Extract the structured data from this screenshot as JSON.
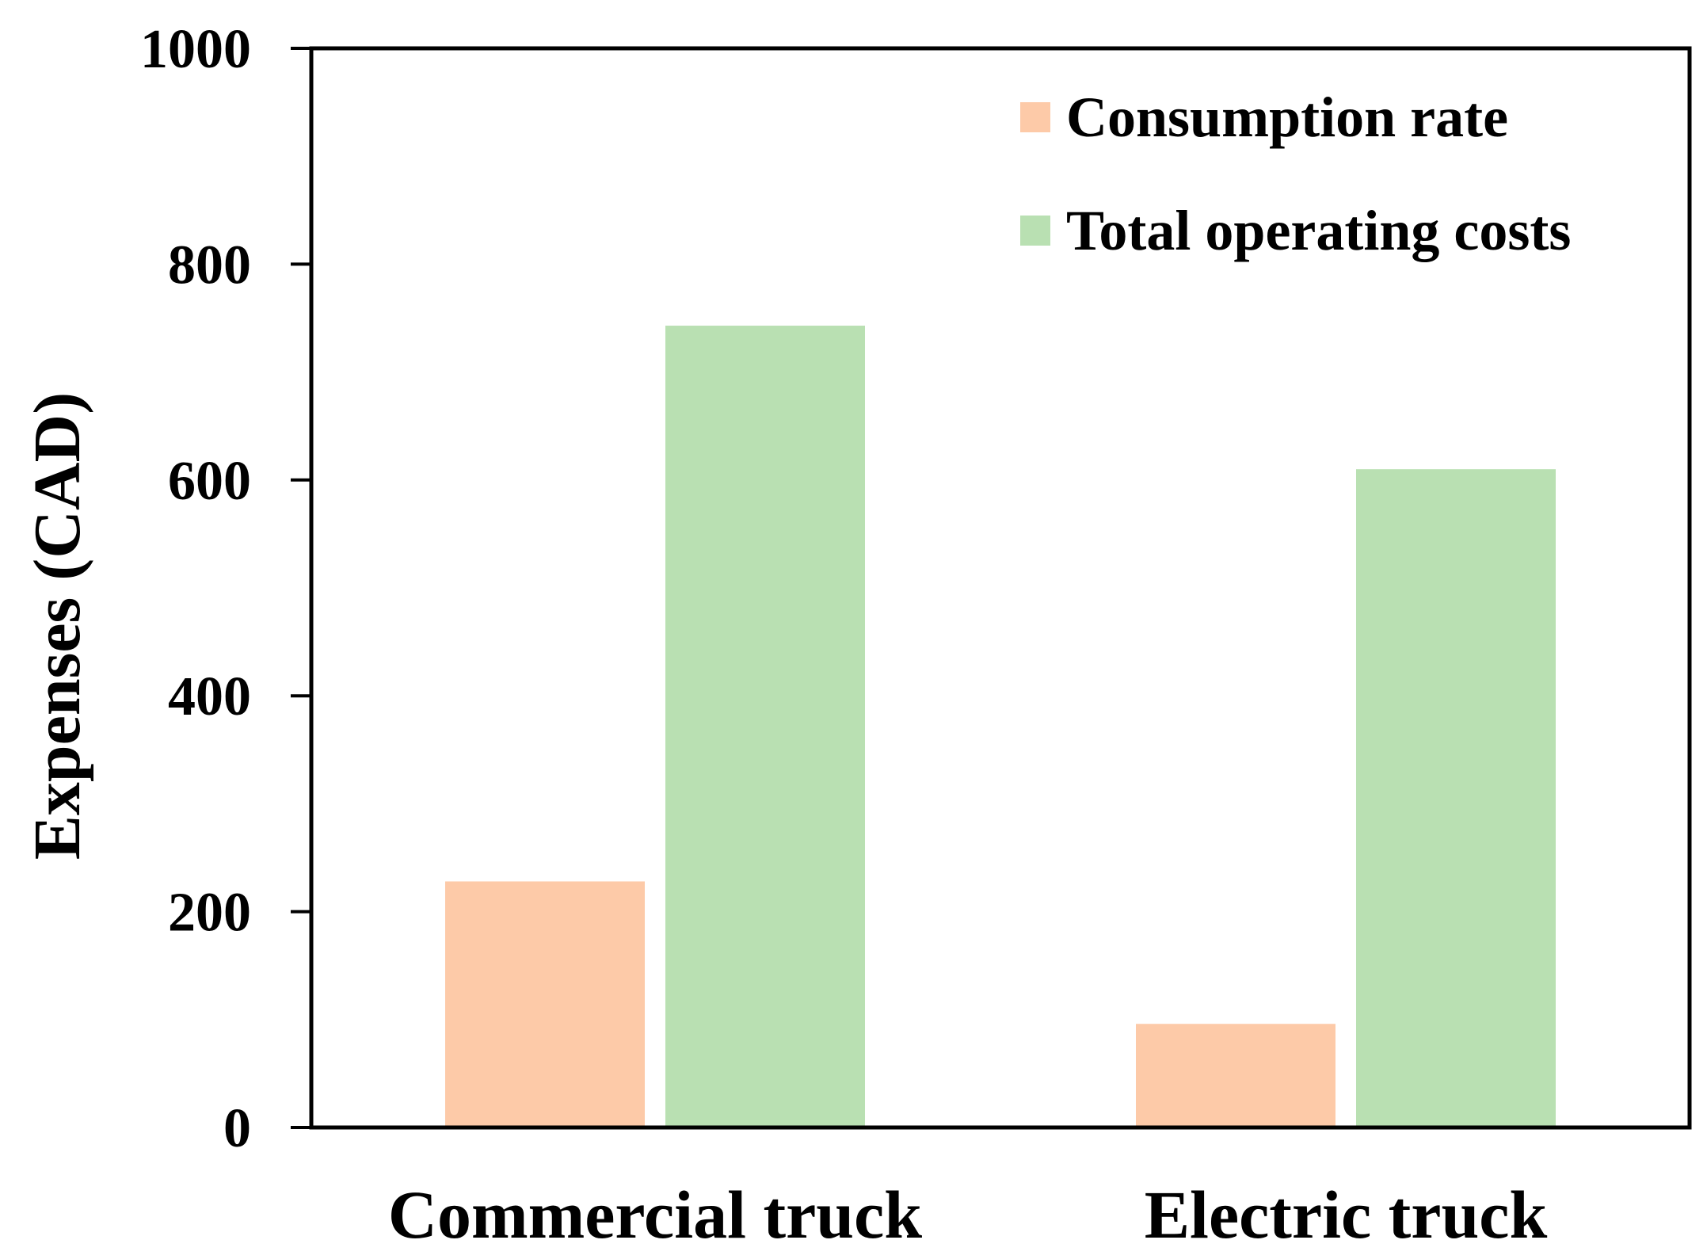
{
  "chart_data": {
    "type": "bar",
    "title": "",
    "xlabel": "",
    "ylabel": "Expenses (CAD)",
    "ylim": [
      0,
      1000
    ],
    "yticks": [
      0,
      200,
      400,
      600,
      800,
      1000
    ],
    "grid": false,
    "legend_position": "top-right",
    "categories": [
      "Commercial truck",
      "Electric truck"
    ],
    "series": [
      {
        "name": "Consumption rate",
        "color": "#fdcaa8",
        "values": [
          228,
          96
        ]
      },
      {
        "name": "Total operating costs",
        "color": "#b9e0b2",
        "values": [
          743,
          610
        ]
      }
    ]
  }
}
